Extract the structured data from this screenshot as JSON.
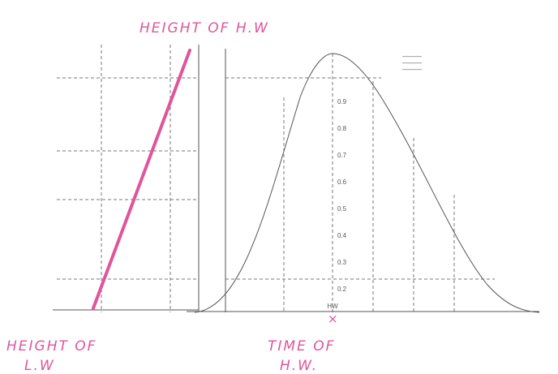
{
  "annotations": {
    "high_water_height": "HEIGHT OF H.W",
    "low_water_height": {
      "line1": "HEIGHT OF",
      "line2": "L.W"
    },
    "high_water_time": {
      "line1": "TIME OF",
      "line2": "H.W."
    },
    "marker": "×"
  },
  "curve_panel": {
    "factor_labels": [
      "0.9",
      "0.8",
      "0.7",
      "0.6",
      "0.5",
      "0.4",
      "0.3",
      "0.2"
    ],
    "time_label": "HW"
  }
}
